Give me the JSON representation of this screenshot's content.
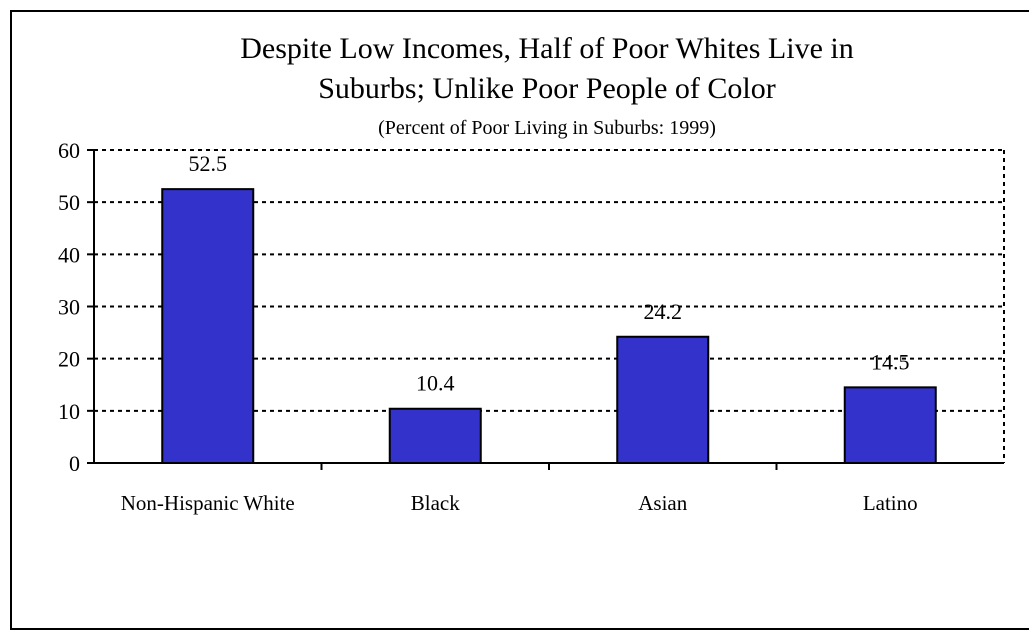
{
  "chart_data": {
    "type": "bar",
    "title_lines": [
      "Despite Low Incomes,  Half of Poor Whites Live in",
      "Suburbs; Unlike Poor People of Color"
    ],
    "subtitle": "(Percent of Poor Living in Suburbs:  1999)",
    "categories": [
      "Non-Hispanic White",
      "Black",
      "Asian",
      "Latino"
    ],
    "values": [
      52.5,
      10.4,
      24.2,
      14.5
    ],
    "data_labels": [
      "52.5",
      "10.4",
      "24.2",
      "14.5"
    ],
    "xlabel": "",
    "ylabel": "",
    "ylim": [
      0,
      60
    ],
    "yticks": [
      0,
      10,
      20,
      30,
      40,
      50,
      60
    ],
    "grid": "horizontal-dotted",
    "legend": "none",
    "bar_color": "#3333cc",
    "bar_edge_color": "#000000"
  }
}
